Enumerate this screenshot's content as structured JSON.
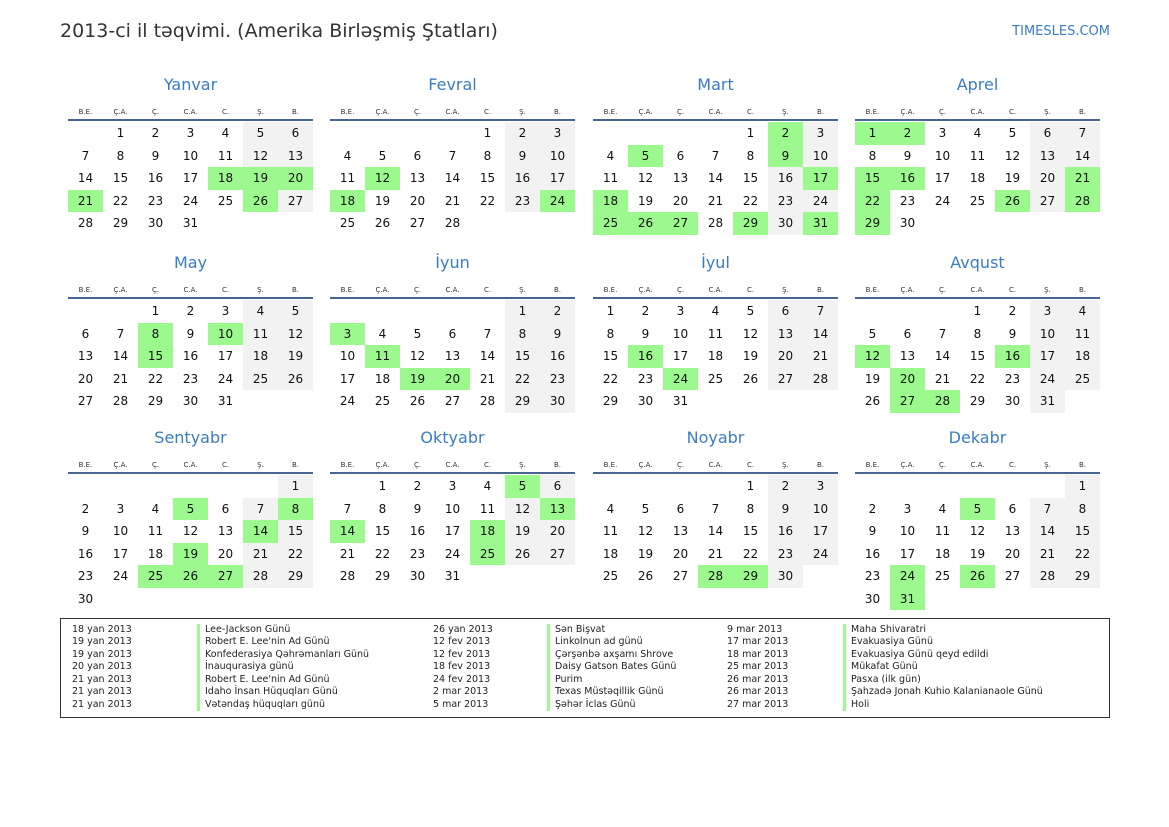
{
  "header": {
    "title": "2013-ci il təqvimi. (Amerika Birləşmiş Ştatları)",
    "brand": "TIMESLES.COM"
  },
  "weekdays": [
    "B.E.",
    "Ç.A.",
    "Ç.",
    "C.A.",
    "C.",
    "Ş.",
    "B."
  ],
  "colors": {
    "holiday": "#9cf98e",
    "weekend": "#f2f2f2",
    "accent": "#3a7cc4"
  },
  "months": [
    {
      "name": "Yanvar",
      "offset": 1,
      "days": 31,
      "holidays": [
        18,
        19,
        20,
        21,
        26
      ]
    },
    {
      "name": "Fevral",
      "offset": 4,
      "days": 28,
      "holidays": [
        12,
        18,
        24
      ]
    },
    {
      "name": "Mart",
      "offset": 4,
      "days": 31,
      "holidays": [
        2,
        5,
        9,
        17,
        18,
        25,
        26,
        27,
        29,
        31
      ]
    },
    {
      "name": "Aprel",
      "offset": 0,
      "days": 30,
      "holidays": [
        1,
        2,
        15,
        16,
        21,
        22,
        26,
        28,
        29
      ]
    },
    {
      "name": "May",
      "offset": 2,
      "days": 31,
      "holidays": [
        8,
        10,
        15
      ]
    },
    {
      "name": "İyun",
      "offset": 5,
      "days": 30,
      "holidays": [
        3,
        11,
        19,
        20
      ]
    },
    {
      "name": "İyul",
      "offset": 0,
      "days": 31,
      "holidays": [
        16,
        24
      ]
    },
    {
      "name": "Avqust",
      "offset": 3,
      "days": 31,
      "holidays": [
        12,
        16,
        20,
        27,
        28
      ]
    },
    {
      "name": "Sentyabr",
      "offset": 6,
      "days": 30,
      "holidays": [
        5,
        8,
        14,
        19,
        25,
        26,
        27
      ]
    },
    {
      "name": "Oktyabr",
      "offset": 1,
      "days": 31,
      "holidays": [
        5,
        13,
        14,
        18,
        25
      ]
    },
    {
      "name": "Noyabr",
      "offset": 4,
      "days": 30,
      "holidays": [
        28,
        29
      ]
    },
    {
      "name": "Dekabr",
      "offset": 6,
      "days": 31,
      "holidays": [
        5,
        24,
        26,
        31
      ]
    }
  ],
  "legend": [
    [
      {
        "date": "18 yan 2013",
        "name": "Lee-Jackson Günü"
      },
      {
        "date": "19 yan 2013",
        "name": "Robert E. Lee'nin Ad Günü"
      },
      {
        "date": "19 yan 2013",
        "name": "Konfederasiya Qəhrəmanları Günü"
      },
      {
        "date": "20 yan 2013",
        "name": "İnauqurasiya günü"
      },
      {
        "date": "21 yan 2013",
        "name": "Robert E. Lee'nin Ad Günü"
      },
      {
        "date": "21 yan 2013",
        "name": "Idaho İnsan Hüquqları Günü"
      },
      {
        "date": "21 yan 2013",
        "name": "Vətəndaş hüquqları günü"
      }
    ],
    [
      {
        "date": "26 yan 2013",
        "name": "Sən Bişvat"
      },
      {
        "date": "12 fev 2013",
        "name": "Linkolnun ad günü"
      },
      {
        "date": "12 fev 2013",
        "name": "Çərşənbə axşamı Shrove"
      },
      {
        "date": "18 fev 2013",
        "name": "Daisy Gatson Bates Günü"
      },
      {
        "date": "24 fev 2013",
        "name": "Purim"
      },
      {
        "date": "2 mar 2013",
        "name": "Texas Müstəqillik Günü"
      },
      {
        "date": "5 mar 2013",
        "name": "Şəhər İclas Günü"
      }
    ],
    [
      {
        "date": "9 mar 2013",
        "name": "Maha Shivaratri"
      },
      {
        "date": "17 mar 2013",
        "name": "Evakuasiya Günü"
      },
      {
        "date": "18 mar 2013",
        "name": "Evakuasiya Günü qeyd edildi"
      },
      {
        "date": "25 mar 2013",
        "name": "Mükafat Günü"
      },
      {
        "date": "26 mar 2013",
        "name": "Pasxa (ilk gün)"
      },
      {
        "date": "26 mar 2013",
        "name": "Şahzadə Jonah Kuhio Kalanianaole Günü"
      },
      {
        "date": "27 mar 2013",
        "name": "Holi"
      }
    ]
  ]
}
